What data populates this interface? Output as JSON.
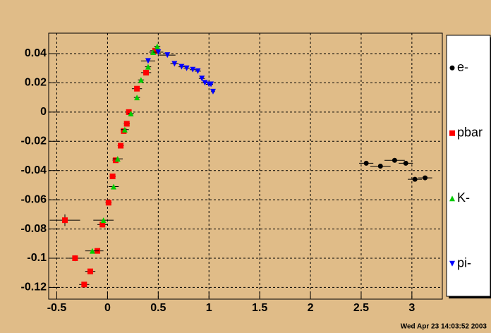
{
  "chart_data": {
    "type": "scatter",
    "timestamp": "Wed Apr 23 14:03:52 2003",
    "xlim": [
      -0.58,
      3.3
    ],
    "ylim": [
      -0.128,
      0.054
    ],
    "xticks": [
      -0.5,
      0,
      0.5,
      1,
      1.5,
      2,
      2.5,
      3
    ],
    "yticks": [
      -0.12,
      -0.1,
      -0.08,
      -0.06,
      -0.04,
      -0.02,
      0,
      0.02,
      0.04
    ],
    "grid": true,
    "legend": "right",
    "series": [
      {
        "name": "e-",
        "color": "#000000",
        "marker": "circle",
        "x": [
          2.55,
          2.69,
          2.83,
          2.94,
          3.03,
          3.13
        ],
        "values": [
          -0.035,
          -0.037,
          -0.033,
          -0.035,
          -0.046,
          -0.045
        ],
        "xerr": [
          0.07,
          0.1,
          0.1,
          0.07,
          0.07,
          0.07
        ],
        "yerr": [
          0.001,
          0.001,
          0.001,
          0.001,
          0.001,
          0.001
        ]
      },
      {
        "name": "pbar",
        "color": "#ff0000",
        "marker": "square",
        "x": [
          -0.42,
          -0.32,
          -0.23,
          -0.17,
          -0.1,
          -0.05,
          0.01,
          0.05,
          0.08,
          0.13,
          0.16,
          0.19,
          0.21,
          0.29,
          0.38,
          0.47
        ],
        "values": [
          -0.074,
          -0.1,
          -0.118,
          -0.109,
          -0.095,
          -0.077,
          -0.062,
          -0.044,
          -0.033,
          -0.023,
          -0.013,
          -0.008,
          0.0,
          0.016,
          0.027,
          0.042
        ],
        "xerr": [
          0.15,
          0.07,
          0.05,
          0.05,
          0.06,
          0.05,
          0.03,
          0.03,
          0.03,
          0.03,
          0.03,
          0.03,
          0.02,
          0.05,
          0.05,
          0.05
        ],
        "yerr": [
          0.004,
          0.002,
          0.001,
          0.001,
          0.001,
          0.001,
          0.001,
          0.001,
          0.001,
          0.001,
          0.001,
          0.001,
          0.001,
          0.001,
          0.001,
          0.001
        ]
      },
      {
        "name": "K-",
        "color": "#00cc00",
        "marker": "triangle-up",
        "x": [
          -0.15,
          -0.04,
          0.06,
          0.1,
          0.17,
          0.23,
          0.29,
          0.33,
          0.4,
          0.45,
          0.49
        ],
        "values": [
          -0.095,
          -0.074,
          -0.051,
          -0.032,
          -0.012,
          -0.001,
          0.01,
          0.022,
          0.031,
          0.041,
          0.045
        ],
        "xerr": [
          0.07,
          0.1,
          0.05,
          0.05,
          0.04,
          0.03,
          0.03,
          0.03,
          0.03,
          0.04,
          0.03
        ],
        "yerr": [
          0.001,
          0.001,
          0.001,
          0.001,
          0.001,
          0.001,
          0.001,
          0.001,
          0.001,
          0.001,
          0.001
        ]
      },
      {
        "name": "pi-",
        "color": "#0000ff",
        "marker": "triangle-down",
        "x": [
          0.4,
          0.5,
          0.59,
          0.66,
          0.73,
          0.78,
          0.84,
          0.89,
          0.93,
          0.96,
          1.0,
          1.02,
          1.04
        ],
        "values": [
          0.035,
          0.041,
          0.039,
          0.033,
          0.031,
          0.03,
          0.029,
          0.028,
          0.023,
          0.02,
          0.019,
          0.019,
          0.014
        ],
        "xerr": [
          0.07,
          0.05,
          0.08,
          0.04,
          0.03,
          0.03,
          0.03,
          0.03,
          0.03,
          0.03,
          0.03,
          0.02,
          0.02
        ],
        "yerr": [
          0.001,
          0.001,
          0.001,
          0.001,
          0.001,
          0.001,
          0.001,
          0.001,
          0.001,
          0.001,
          0.001,
          0.001,
          0.001
        ]
      }
    ]
  }
}
